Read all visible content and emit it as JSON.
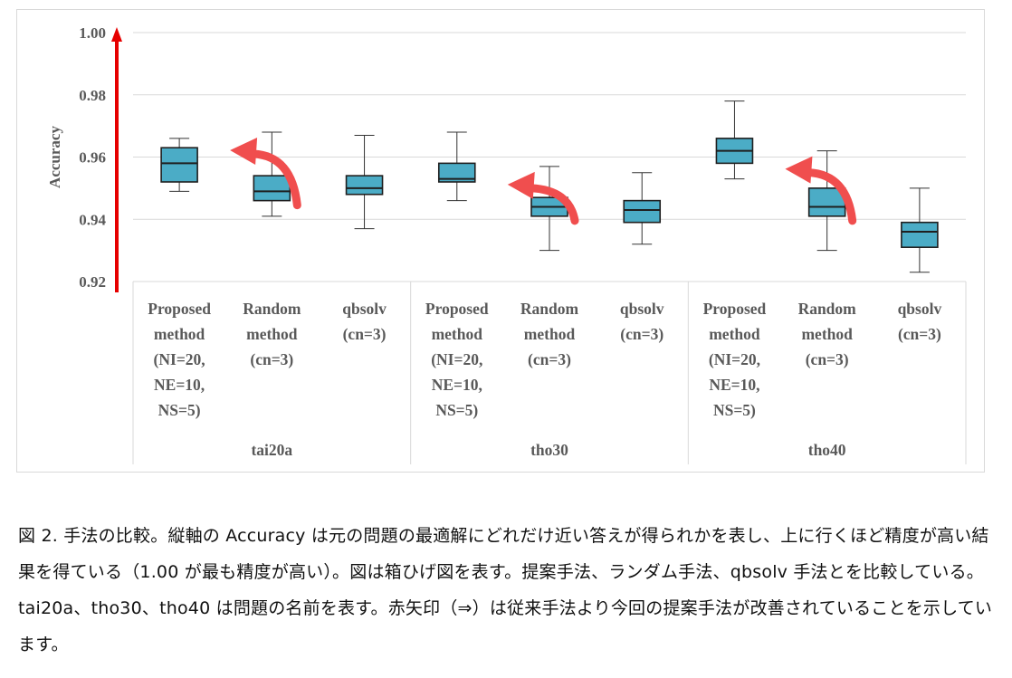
{
  "chart_data": {
    "type": "box",
    "ylabel": "Accuracy",
    "ylim": [
      0.92,
      1.0
    ],
    "yticks": [
      "0.92",
      "0.94",
      "0.96",
      "0.98",
      "1.00"
    ],
    "yticks_values": [
      0.92,
      0.94,
      0.96,
      0.98,
      1.0
    ],
    "grid": true,
    "groups": [
      {
        "name": "tai20a",
        "boxes": [
          {
            "label": [
              "Proposed",
              "method",
              "(NI=20,",
              "NE=10,",
              "NS=5)"
            ],
            "min": 0.949,
            "q1": 0.952,
            "median": 0.958,
            "q3": 0.963,
            "max": 0.966
          },
          {
            "label": [
              "Random",
              "method",
              "(cn=3)"
            ],
            "min": 0.941,
            "q1": 0.946,
            "median": 0.949,
            "q3": 0.954,
            "max": 0.968
          },
          {
            "label": [
              "qbsolv",
              "(cn=3)"
            ],
            "min": 0.937,
            "q1": 0.948,
            "median": 0.95,
            "q3": 0.954,
            "max": 0.967
          }
        ]
      },
      {
        "name": "tho30",
        "boxes": [
          {
            "label": [
              "Proposed",
              "method",
              "(NI=20,",
              "NE=10,",
              "NS=5)"
            ],
            "min": 0.946,
            "q1": 0.952,
            "median": 0.953,
            "q3": 0.958,
            "max": 0.968
          },
          {
            "label": [
              "Random",
              "method",
              "(cn=3)"
            ],
            "min": 0.93,
            "q1": 0.941,
            "median": 0.944,
            "q3": 0.947,
            "max": 0.957
          },
          {
            "label": [
              "qbsolv",
              "(cn=3)"
            ],
            "min": 0.932,
            "q1": 0.939,
            "median": 0.943,
            "q3": 0.946,
            "max": 0.955
          }
        ]
      },
      {
        "name": "tho40",
        "boxes": [
          {
            "label": [
              "Proposed",
              "method",
              "(NI=20,",
              "NE=10,",
              "NS=5)"
            ],
            "min": 0.953,
            "q1": 0.958,
            "median": 0.962,
            "q3": 0.966,
            "max": 0.978
          },
          {
            "label": [
              "Random",
              "method",
              "(cn=3)"
            ],
            "min": 0.93,
            "q1": 0.941,
            "median": 0.944,
            "q3": 0.95,
            "max": 0.962
          },
          {
            "label": [
              "qbsolv",
              "(cn=3)"
            ],
            "min": 0.923,
            "q1": 0.931,
            "median": 0.936,
            "q3": 0.939,
            "max": 0.95
          }
        ]
      }
    ],
    "annotations": [
      {
        "type": "red-arrow",
        "from_group": 0,
        "from_box": 1,
        "to_box": 0
      },
      {
        "type": "red-arrow",
        "from_group": 1,
        "from_box": 1,
        "to_box": 0
      },
      {
        "type": "red-arrow",
        "from_group": 2,
        "from_box": 1,
        "to_box": 0
      },
      {
        "type": "red-vertical-arrow-on-y-axis"
      }
    ],
    "colors": {
      "box_fill": "#4bacc6",
      "box_stroke": "#1f1f1f",
      "grid": "#d9d9d9",
      "arrow": "#f04e4e",
      "axis_arrow": "#e60000",
      "text": "#595959"
    }
  },
  "caption": "図 2. 手法の比較。縦軸の Accuracy は元の問題の最適解にどれだけ近い答えが得られかを表し、上に行くほど精度が高い結果を得ている（1.00 が最も精度が高い）。図は箱ひげ図を表す。提案手法、ランダム手法、qbsolv 手法とを比較している。tai20a、tho30、tho40 は問題の名前を表す。赤矢印（⇒）は従来手法より今回の提案手法が改善されていることを示しています。"
}
